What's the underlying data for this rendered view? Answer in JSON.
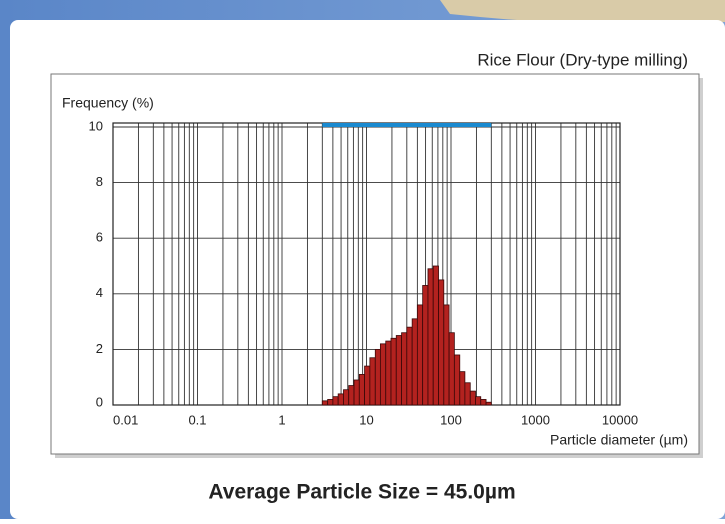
{
  "chart_data": {
    "type": "histogram",
    "title": "Rice Flour (Dry-type milling)",
    "ylabel": "Frequency (%)",
    "xlabel": "Particle diameter (µm)",
    "annotation": "Average Particle Size = 45.0µm",
    "xscale": "log",
    "color": "#b3221f",
    "bins": [
      3.0,
      3.47,
      4.0,
      4.62,
      5.34,
      6.16,
      7.12,
      8.22,
      9.49,
      10.96,
      12.7,
      14.6,
      16.9,
      19.5,
      22.5,
      26.0,
      30.0,
      34.7,
      40.0,
      46.2,
      53.4,
      61.6,
      71.2,
      82.2,
      94.9,
      109.6,
      127,
      146,
      169,
      195,
      225,
      260,
      300
    ],
    "values": [
      0.15,
      0.2,
      0.3,
      0.4,
      0.55,
      0.7,
      0.9,
      1.1,
      1.4,
      1.7,
      2.0,
      2.2,
      2.3,
      2.4,
      2.5,
      2.6,
      2.8,
      3.1,
      3.6,
      4.3,
      4.9,
      5.0,
      4.5,
      3.6,
      2.6,
      1.8,
      1.2,
      0.8,
      0.5,
      0.3,
      0.2,
      0.1
    ],
    "xlim": [
      0.01,
      10000
    ],
    "xticks": [
      0.01,
      0.1,
      1,
      10,
      100,
      1000,
      10000
    ],
    "xminorticks": [
      0.02,
      0.03,
      0.04,
      0.05,
      0.06,
      0.07,
      0.08,
      0.09,
      0.2,
      0.3,
      0.4,
      0.5,
      0.6,
      0.7,
      0.8,
      0.9,
      2,
      3,
      4,
      5,
      6,
      7,
      8,
      9,
      20,
      30,
      40,
      50,
      60,
      70,
      80,
      90,
      200,
      300,
      400,
      500,
      600,
      700,
      800,
      900,
      2000,
      3000,
      4000,
      5000,
      6000,
      7000,
      8000,
      9000
    ],
    "ylim": [
      0,
      10
    ],
    "yticks": [
      0,
      2,
      4,
      6,
      8,
      10
    ],
    "grid": true
  }
}
